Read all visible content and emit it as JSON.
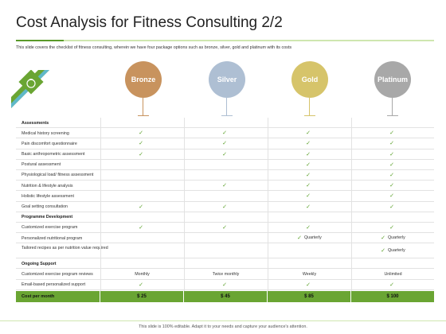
{
  "title": "Cost Analysis for Fitness Consulting 2/2",
  "subtitle": "This slide covers the checklist of fitness consulting, wherein we have four package options such as bronze, silver, gold and platinum with its costs",
  "packages": [
    {
      "name": "Bronze",
      "color": "#c8935e"
    },
    {
      "name": "Silver",
      "color": "#aebfd3"
    },
    {
      "name": "Gold",
      "color": "#d6c46a"
    },
    {
      "name": "Platinum",
      "color": "#a8a8a8"
    }
  ],
  "accent_color": "#6aa533",
  "check_color": "#5ba02a",
  "rows": [
    {
      "label": "Assessments",
      "section": true,
      "cells": [
        "",
        "",
        "",
        ""
      ]
    },
    {
      "label": "Medical history screening",
      "cells": [
        "check",
        "check",
        "check",
        "check"
      ]
    },
    {
      "label": "Pain discomfort questionnaire",
      "cells": [
        "check",
        "check",
        "check",
        "check"
      ]
    },
    {
      "label": "Basic anthropometric assessment",
      "cells": [
        "check",
        "check",
        "check",
        "check"
      ]
    },
    {
      "label": "Postural assessment",
      "cells": [
        "",
        "",
        "check",
        "check"
      ]
    },
    {
      "label": "Physiological load/ fitness assessment",
      "cells": [
        "",
        "",
        "check",
        "check"
      ]
    },
    {
      "label": "Nutrition & lifestyle analysis",
      "cells": [
        "",
        "check",
        "check",
        "check"
      ]
    },
    {
      "label": "Holistic lifestyle assessment",
      "cells": [
        "",
        "",
        "check",
        "check"
      ]
    },
    {
      "label": "Goal setting consultation",
      "cells": [
        "check",
        "check",
        "check",
        "check"
      ]
    },
    {
      "label": "Programme Development",
      "section": true,
      "cells": [
        "",
        "",
        "",
        ""
      ]
    },
    {
      "label": "Customized exercise program",
      "cells": [
        "check",
        "check",
        "check",
        "check"
      ]
    },
    {
      "label": "Personalized nutritional program",
      "cells": [
        "",
        "",
        "check|Quarterly",
        "check|Quarterly"
      ]
    },
    {
      "label": "Tailored recipes as per nutrition value required",
      "tall": true,
      "cells": [
        "",
        "",
        "",
        "check|Quarterly"
      ]
    },
    {
      "label": "Ongoing Support",
      "section": true,
      "cells": [
        "",
        "",
        "",
        ""
      ]
    },
    {
      "label": "Customized exercise program reviews",
      "cells": [
        "Monthly",
        "Twice monthly",
        "Weekly",
        "Unlimited"
      ]
    },
    {
      "label": "Email-based personalized support",
      "cells": [
        "check",
        "check",
        "check",
        "check"
      ]
    }
  ],
  "cost": {
    "label": "Cost per month",
    "prices": [
      "$ 25",
      "$ 45",
      "$ 85",
      "$ 100"
    ]
  },
  "footer": "This slide is 100% editable. Adapt it to your needs and capture your audience's attention."
}
